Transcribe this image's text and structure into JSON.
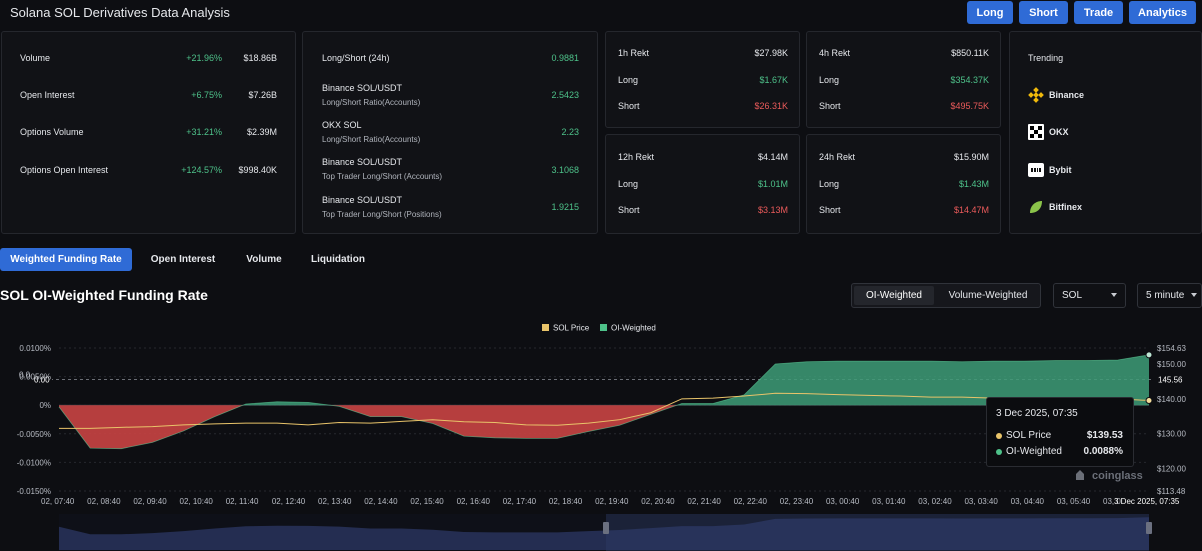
{
  "app": {
    "title": "Solana SOL Derivatives Data Analysis"
  },
  "nav": {
    "long": "Long",
    "short": "Short",
    "trade": "Trade",
    "analytics": "Analytics"
  },
  "overview": {
    "rows": [
      {
        "label": "Volume",
        "change": "+21.96%",
        "value": "$18.86B"
      },
      {
        "label": "Open Interest",
        "change": "+6.75%",
        "value": "$7.26B"
      },
      {
        "label": "Options Volume",
        "change": "+31.21%",
        "value": "$2.39M"
      },
      {
        "label": "Options Open Interest",
        "change": "+124.57%",
        "value": "$998.40K"
      }
    ]
  },
  "ratios": {
    "rows": [
      {
        "label": "Long/Short (24h)",
        "sub": "",
        "value": "0.9881"
      },
      {
        "label": "Binance SOL/USDT",
        "sub": "Long/Short Ratio(Accounts)",
        "value": "2.5423"
      },
      {
        "label": "OKX SOL",
        "sub": "Long/Short Ratio(Accounts)",
        "value": "2.23"
      },
      {
        "label": "Binance SOL/USDT",
        "sub": "Top Trader Long/Short (Accounts)",
        "value": "3.1068"
      },
      {
        "label": "Binance SOL/USDT",
        "sub": "Top Trader Long/Short (Positions)",
        "value": "1.9215"
      }
    ]
  },
  "rekt": [
    {
      "title": "1h Rekt",
      "total": "$27.98K",
      "long_label": "Long",
      "long": "$1.67K",
      "short_label": "Short",
      "short": "$26.31K"
    },
    {
      "title": "4h Rekt",
      "total": "$850.11K",
      "long_label": "Long",
      "long": "$354.37K",
      "short_label": "Short",
      "short": "$495.75K"
    },
    {
      "title": "12h Rekt",
      "total": "$4.14M",
      "long_label": "Long",
      "long": "$1.01M",
      "short_label": "Short",
      "short": "$3.13M"
    },
    {
      "title": "24h Rekt",
      "total": "$15.90M",
      "long_label": "Long",
      "long": "$1.43M",
      "short_label": "Short",
      "short": "$14.47M"
    }
  ],
  "trending": {
    "title": "Trending",
    "items": [
      {
        "name": "Binance",
        "icon": "binance-icon"
      },
      {
        "name": "OKX",
        "icon": "okx-icon"
      },
      {
        "name": "Bybit",
        "icon": "bybit-icon"
      },
      {
        "name": "Bitfinex",
        "icon": "bitfinex-icon"
      }
    ]
  },
  "tabs": [
    "Weighted Funding Rate",
    "Open Interest",
    "Volume",
    "Liquidation"
  ],
  "chart_header": {
    "title": "SOL OI-Weighted Funding Rate",
    "toggle": [
      "OI-Weighted",
      "Volume-Weighted"
    ],
    "symbol": "SOL",
    "interval": "5 minute"
  },
  "colors": {
    "accent": "#2f6bd6",
    "green": "#4ec28a",
    "red": "#ec5b5b",
    "price": "#e9c46a"
  },
  "chart_data": {
    "type": "area",
    "legend": [
      "SOL Price",
      "OI-Weighted"
    ],
    "legend_position": "top-center",
    "left_ticks": [
      "0.0100%",
      "0.0050%",
      "0%",
      "-0.0050%",
      "-0.0100%",
      "-0.0150%"
    ],
    "right_ticks": [
      "$154.63",
      "$150.00",
      "$140.00",
      "$130.00",
      "$120.00",
      "$113.48"
    ],
    "crosshair_left": "0.00",
    "crosshair_right": "145.56",
    "left_partial": "0.0",
    "x_ticks": [
      "02, 07:40",
      "02, 08:40",
      "02, 09:40",
      "02, 10:40",
      "02, 11:40",
      "02, 12:40",
      "02, 13:40",
      "02, 14:40",
      "02, 15:40",
      "02, 16:40",
      "02, 17:40",
      "02, 18:40",
      "02, 19:40",
      "02, 20:40",
      "02, 21:40",
      "02, 22:40",
      "02, 23:40",
      "03, 00:40",
      "03, 01:40",
      "03, 02:40",
      "03, 03:40",
      "03, 04:40",
      "03, 05:40",
      "03, 0"
    ],
    "x_last": "3 Dec 2025, 07:35",
    "ylim_left": [
      -0.015,
      0.01
    ],
    "ylim_right": [
      113.48,
      154.63
    ],
    "oi_weighted": [
      -0.0003,
      -0.0075,
      -0.0076,
      -0.0065,
      -0.0045,
      -0.002,
      0.0002,
      0.0006,
      0.0005,
      -0.0002,
      -0.002,
      -0.002,
      -0.0032,
      -0.0054,
      -0.0057,
      -0.0058,
      -0.0058,
      -0.0046,
      -0.0035,
      -0.0016,
      0.0003,
      0.0003,
      0.0018,
      0.0072,
      0.0076,
      0.0077,
      0.0077,
      0.0077,
      0.0077,
      0.0076,
      0.0077,
      0.0077,
      0.0078,
      0.0078,
      0.0079,
      0.0088
    ],
    "sol_price": [
      131.5,
      131.5,
      131.8,
      132.0,
      132.5,
      132.8,
      133.0,
      133.0,
      132.5,
      133.2,
      133.0,
      133.5,
      134.0,
      133.4,
      133.2,
      132.5,
      132.4,
      133.0,
      134.0,
      136.0,
      140.0,
      140.2,
      140.8,
      141.6,
      141.5,
      141.2,
      141.0,
      140.8,
      140.5,
      140.5,
      140.2,
      140.0,
      140.2,
      140.3,
      140.0,
      139.53
    ],
    "grid": true,
    "grid_style": "dashed"
  },
  "tooltip": {
    "title": "3 Dec 2025, 07:35",
    "rows": [
      {
        "label": "SOL Price",
        "value": "$139.53"
      },
      {
        "label": "OI-Weighted",
        "value": "0.0088%"
      }
    ]
  },
  "watermark": "coinglass"
}
